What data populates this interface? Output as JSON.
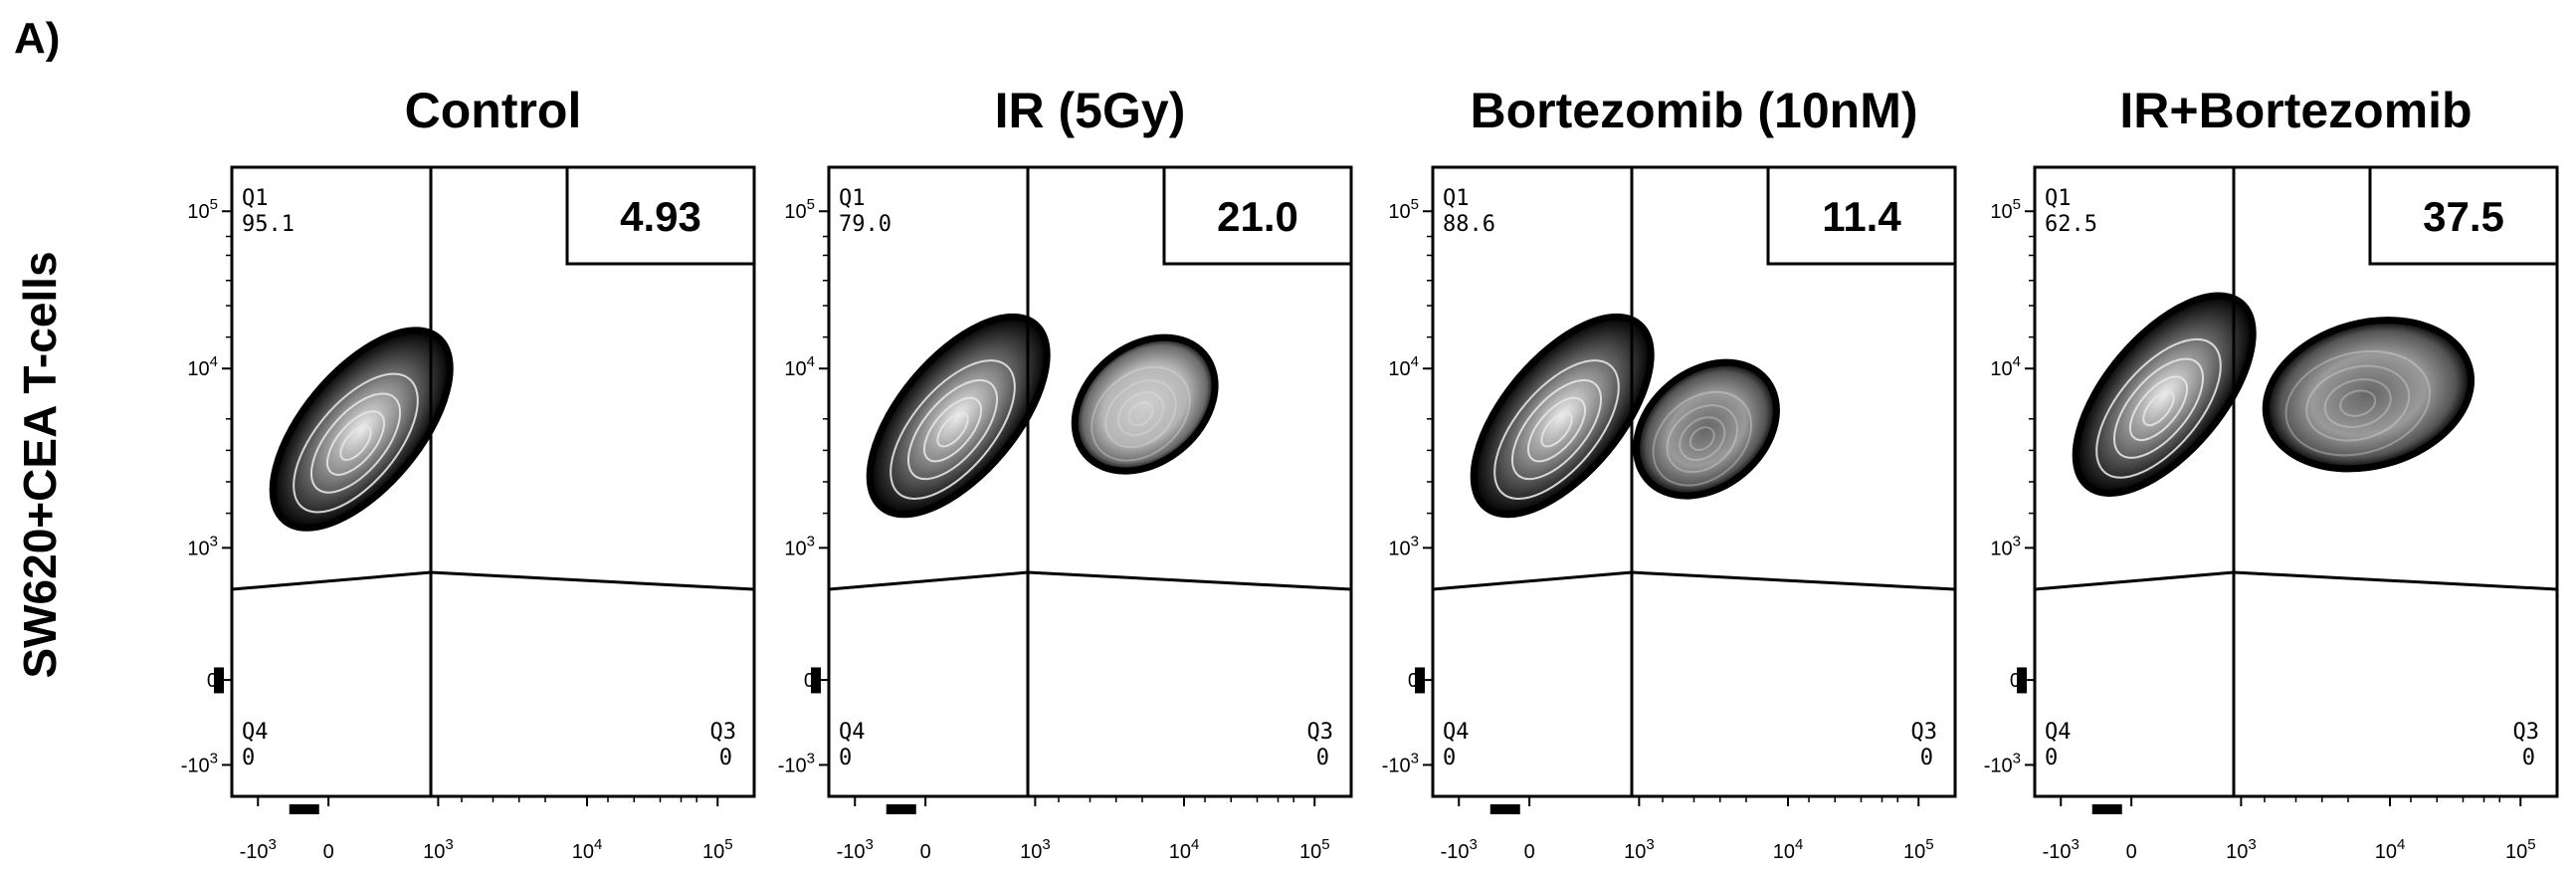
{
  "panel_label": "A)",
  "y_axis_label": "SW620+CEA T-cells",
  "chart_data": [
    {
      "type": "contour",
      "title": "Control",
      "y_ticks": [
        "-10^3",
        "0",
        "10^3",
        "10^4",
        "10^5"
      ],
      "x_ticks": [
        "-10^3",
        "0",
        "10^3",
        "10^4",
        "10^5"
      ],
      "quadrants": {
        "Q1": {
          "label": "Q1",
          "value": "95.1"
        },
        "Q3": {
          "label": "Q3",
          "value": "0"
        },
        "Q4": {
          "label": "Q4",
          "value": "0"
        }
      },
      "highlight_value": "4.93",
      "populations": [
        {
          "center": [
            300,
            5000
          ],
          "spread": "elongated diagonal",
          "shade": "dark"
        }
      ]
    },
    {
      "type": "contour",
      "title": "IR (5Gy)",
      "y_ticks": [
        "-10^3",
        "0",
        "10^3",
        "10^4",
        "10^5"
      ],
      "x_ticks": [
        "-10^3",
        "0",
        "10^3",
        "10^4",
        "10^5"
      ],
      "quadrants": {
        "Q1": {
          "label": "Q1",
          "value": "79.0"
        },
        "Q3": {
          "label": "Q3",
          "value": "0"
        },
        "Q4": {
          "label": "Q4",
          "value": "0"
        }
      },
      "highlight_value": "21.0",
      "populations": [
        {
          "center": [
            300,
            6000
          ],
          "spread": "elongated diagonal",
          "shade": "dark"
        },
        {
          "center": [
            6000,
            7000
          ],
          "spread": "oval",
          "shade": "light"
        }
      ]
    },
    {
      "type": "contour",
      "title": "Bortezomib (10nM)",
      "y_ticks": [
        "-10^3",
        "0",
        "10^3",
        "10^4",
        "10^5"
      ],
      "x_ticks": [
        "-10^3",
        "0",
        "10^3",
        "10^4",
        "10^5"
      ],
      "quadrants": {
        "Q1": {
          "label": "Q1",
          "value": "88.6"
        },
        "Q3": {
          "label": "Q3",
          "value": "0"
        },
        "Q4": {
          "label": "Q4",
          "value": "0"
        }
      },
      "highlight_value": "11.4",
      "populations": [
        {
          "center": [
            300,
            6000
          ],
          "spread": "elongated diagonal",
          "shade": "dark"
        },
        {
          "center": [
            3000,
            5000
          ],
          "spread": "oval",
          "shade": "medium"
        }
      ]
    },
    {
      "type": "contour",
      "title": "IR+Bortezomib",
      "y_ticks": [
        "-10^3",
        "0",
        "10^3",
        "10^4",
        "10^5"
      ],
      "x_ticks": [
        "-10^3",
        "0",
        "10^3",
        "10^4",
        "10^5"
      ],
      "quadrants": {
        "Q1": {
          "label": "Q1",
          "value": "62.5"
        },
        "Q3": {
          "label": "Q3",
          "value": "0"
        },
        "Q4": {
          "label": "Q4",
          "value": "0"
        }
      },
      "highlight_value": "37.5",
      "populations": [
        {
          "center": [
            300,
            8000
          ],
          "spread": "elongated diagonal",
          "shade": "dark"
        },
        {
          "center": [
            8000,
            8000
          ],
          "spread": "broad",
          "shade": "medium"
        }
      ]
    }
  ]
}
